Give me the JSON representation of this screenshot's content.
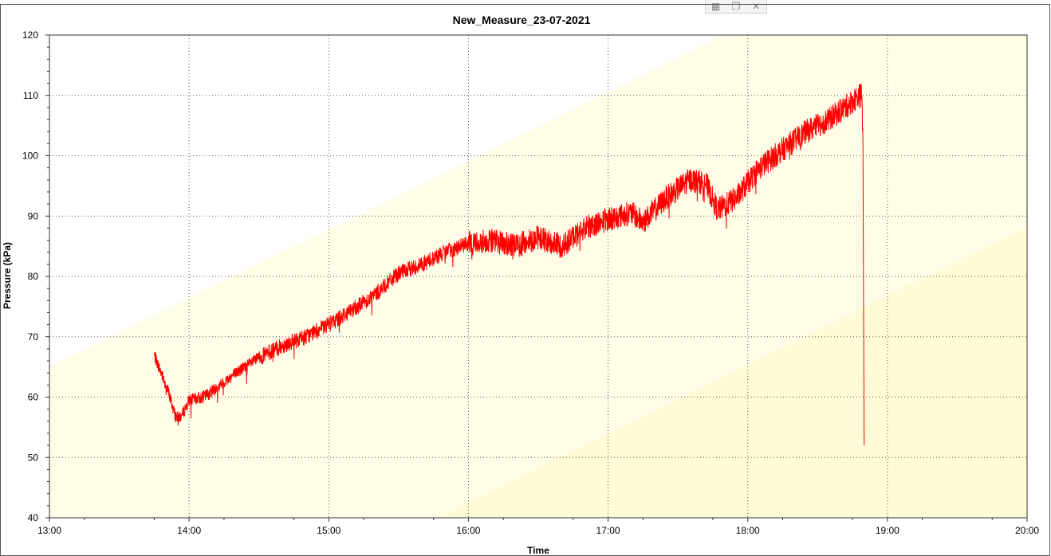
{
  "window": {
    "buttons": [
      {
        "name": "grid-icon",
        "glyph": "▦"
      },
      {
        "name": "restore-icon",
        "glyph": "❐"
      },
      {
        "name": "close-icon",
        "glyph": "✕"
      }
    ]
  },
  "chart_data": {
    "type": "line",
    "title": "New_Measure_23-07-2021",
    "xlabel": "Time",
    "ylabel": "Pressure (kPa)",
    "x_range_hours": [
      13,
      20
    ],
    "ylim": [
      40,
      120
    ],
    "x_ticks": [
      "13:00",
      "14:00",
      "15:00",
      "16:00",
      "17:00",
      "18:00",
      "19:00",
      "20:00"
    ],
    "y_ticks": [
      40,
      50,
      60,
      70,
      80,
      90,
      100,
      110,
      120
    ],
    "grid": true,
    "legend": "none",
    "colors": {
      "series": "#ff0000",
      "band_light": "#fffde8",
      "band_dark": "#fffbd6",
      "grid": "#555555",
      "axis": "#333333"
    },
    "series": [
      {
        "values_time": [
          "13:45",
          "13:48",
          "13:51",
          "13:54",
          "13:55",
          "13:57",
          "14:00",
          "14:06",
          "14:12",
          "14:20",
          "14:30",
          "14:40",
          "14:50",
          "15:00",
          "15:10",
          "15:20",
          "15:30",
          "15:40",
          "15:50",
          "16:00",
          "16:10",
          "16:20",
          "16:30",
          "16:40",
          "16:50",
          "17:00",
          "17:10",
          "17:15",
          "17:25",
          "17:35",
          "17:42",
          "17:47",
          "17:55",
          "18:05",
          "18:15",
          "18:25",
          "18:35",
          "18:45",
          "18:48",
          "18:49",
          "18:49.5",
          "18:50"
        ],
        "values": [
          67,
          64,
          61,
          57,
          56.5,
          57,
          59.5,
          60,
          61.5,
          64,
          66.5,
          68.5,
          70,
          72,
          74.5,
          77,
          80.5,
          82,
          84,
          85.5,
          86,
          85,
          86.5,
          85,
          88,
          89.5,
          90.5,
          89,
          93,
          96,
          95.5,
          91,
          93,
          98,
          101,
          104,
          106,
          109,
          110,
          110,
          102,
          52
        ]
      }
    ]
  }
}
